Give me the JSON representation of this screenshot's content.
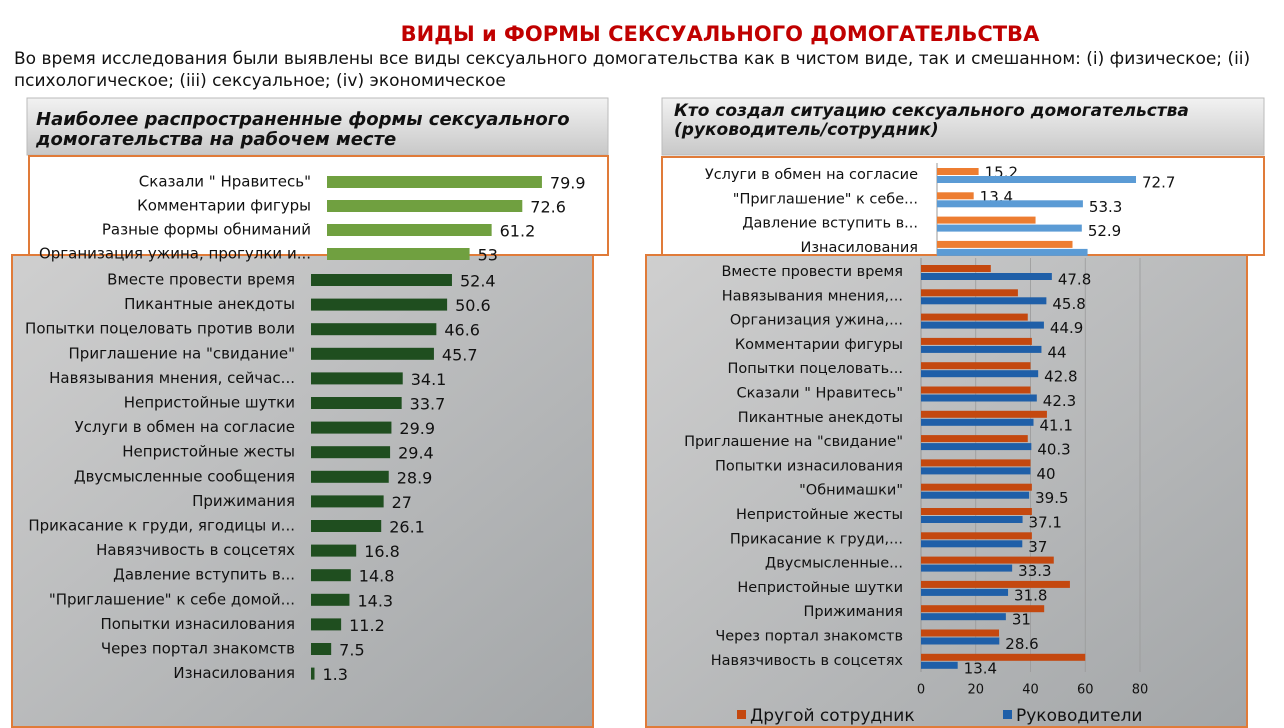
{
  "slide": {
    "title": "ВИДЫ и ФОРМЫ СЕКСУАЛЬНОГО ДОМОГАТЕЛЬСТВА",
    "text_lines": [
      "Во время исследования были выявлены все виды сексуального домогательства как в чистом виде, так и смешанном: (i) физическое; (ii)",
      "психологическое; (iii) сексуальное; (iv) экономическое"
    ]
  },
  "chart_data": [
    {
      "type": "bar",
      "title_lines": [
        "Наиболее распространенные формы сексуального",
        "домогательства на рабочем месте"
      ],
      "categories": [
        "Сказали \" Нравитесь\"",
        "Комментарии фигуры",
        "Разные формы обниманий",
        "Организация ужина, прогулки и...",
        "Вместе провести время",
        "Пикантные анекдоты",
        "Попытки поцеловать против  воли",
        "Приглашение на \"свидание\"",
        "Навязывания мнения,  сейчас...",
        "Непристойные шутки",
        "Услуги в обмен на согласие",
        "Непристойные жесты",
        "Двусмысленные  сообщения",
        "Прижимания",
        "Прикасание к груди, ягодицы и...",
        "Навязчивость в соцсетях",
        "Давление  вступить в...",
        "\"Приглашение\"  к себе домой...",
        "Попытки изнасилования",
        "Через портал знакомств",
        "Изнасилования"
      ],
      "values": [
        79.9,
        72.6,
        61.2,
        53,
        52.4,
        50.6,
        46.6,
        45.7,
        34.1,
        33.7,
        29.9,
        29.4,
        28.9,
        27,
        26.1,
        16.8,
        14.8,
        14.3,
        11.2,
        7.5,
        1.3
      ],
      "colors": [
        "#70a040",
        "#1f4e1f"
      ]
    },
    {
      "type": "grouped-bar",
      "title_lines": [
        "Кто создал ситуацию сексуального домогательства",
        "(руководитель/сотрудник)"
      ],
      "categories": [
        "Услуги в обмен на согласие",
        "\"Приглашение\"  к себе...",
        "Давление  вступить в...",
        "Изнасилования",
        "Вместе провести время",
        "Навязывания мнения,...",
        "Организация  ужина,...",
        "Комментарии фигуры",
        "Попытки поцеловать...",
        "Сказали \" Нравитесь\"",
        "Пикантные анекдоты",
        "Приглашение на \"свидание\"",
        "Попытки изнасилования",
        "\"Обнимашки\"",
        "Непристойные жесты",
        "Прикасание к груди,...",
        "Двусмысленные...",
        "Непристойные шутки",
        "Прижимания",
        "Через портал знакомств",
        "Навязчивость в соцсетях"
      ],
      "series": [
        {
          "name": "Другой сотрудник",
          "color": "#c4480f",
          "light_color": "#ed7d31",
          "values": [
            15.2,
            13.4,
            36,
            49.5,
            25.5,
            35.4,
            39,
            40.5,
            40,
            40,
            46,
            39,
            40,
            40.5,
            40.5,
            40.5,
            48.5,
            54.4,
            45,
            28.5,
            60
          ],
          "value_labels": [
            "15.2",
            "13.4",
            null,
            null,
            null,
            null,
            null,
            null,
            null,
            null,
            null,
            null,
            null,
            null,
            null,
            null,
            null,
            null,
            null,
            null,
            null
          ]
        },
        {
          "name": "Руководители",
          "color": "#1f5fa8",
          "light_color": "#5b9bd5",
          "values": [
            72.7,
            53.3,
            52.9,
            55,
            47.8,
            45.8,
            44.9,
            44,
            42.8,
            42.3,
            41.1,
            40.3,
            40,
            39.5,
            37.1,
            37,
            33.3,
            31.8,
            31,
            28.6,
            13.4
          ],
          "value_labels": [
            "72.7",
            "53.3",
            "52.9",
            null,
            "47.8",
            "45.8",
            "44.9",
            "44",
            "42.8",
            "42.3",
            "41.1",
            "40.3",
            "40",
            "39.5",
            "37.1",
            "37",
            "33.3",
            "31.8",
            "31",
            "28.6",
            "13.4"
          ]
        }
      ],
      "xlim": [
        0,
        80
      ],
      "xticks": [
        0,
        20,
        40,
        60,
        80
      ]
    }
  ]
}
